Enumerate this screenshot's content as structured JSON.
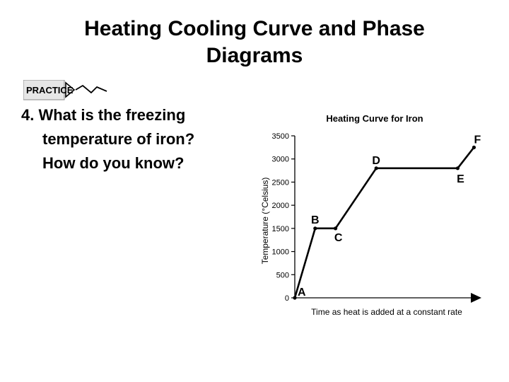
{
  "slide": {
    "title_line1": "Heating Cooling Curve and Phase",
    "title_line2": "Diagrams",
    "badge_label": "PRACTICE",
    "question_line1": "4. What is the freezing",
    "question_line2": "temperature of iron?",
    "question_line3": "How do you know?"
  },
  "chart_data": {
    "type": "line",
    "title": "Heating Curve for Iron",
    "xlabel": "Time as heat is added at a constant rate",
    "ylabel": "Temperature (°Celsius)",
    "ylim": [
      0,
      3500
    ],
    "yticks": [
      0,
      500,
      1000,
      1500,
      2000,
      2500,
      3000,
      3500
    ],
    "xlim": [
      0,
      100
    ],
    "x_ticks_shown": false,
    "grid": false,
    "legend": "none",
    "points": [
      {
        "label": "A",
        "x": 0,
        "y": 0
      },
      {
        "label": "B",
        "x": 10,
        "y": 1500
      },
      {
        "label": "C",
        "x": 20,
        "y": 1500
      },
      {
        "label": "D",
        "x": 40,
        "y": 2800
      },
      {
        "label": "E",
        "x": 80,
        "y": 2800
      },
      {
        "label": "F",
        "x": 88,
        "y": 3250
      }
    ],
    "line_color": "#000000"
  }
}
